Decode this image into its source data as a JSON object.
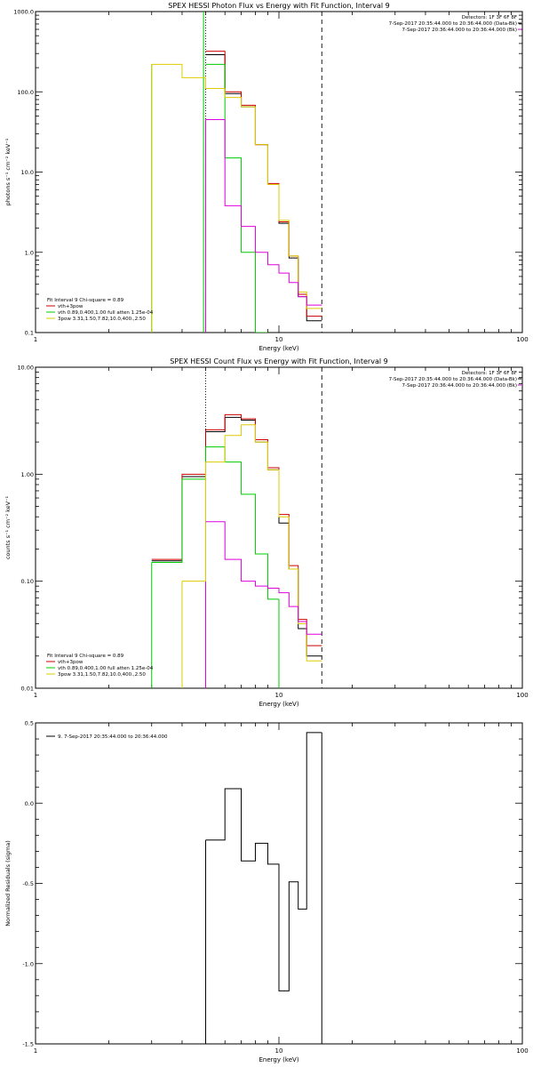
{
  "page": {
    "background": "#ffffff"
  },
  "colors": {
    "black": "#000000",
    "red": "#cc0000",
    "green": "#00cc00",
    "yellow": "#ddcc00",
    "magenta": "#dd00dd"
  },
  "chart_data": [
    {
      "type": "line",
      "title": "SPEX HESSI Photon Flux vs Energy with Fit Function, Interval 9",
      "xlabel": "Energy (keV)",
      "ylabel": "photons s⁻¹ cm⁻² keV⁻¹",
      "xscale": "log",
      "yscale": "log",
      "xlim": [
        1,
        100
      ],
      "ylim": [
        0.1,
        1000
      ],
      "xticks": [
        {
          "v": 1,
          "label": "1"
        },
        {
          "v": 10,
          "label": "10"
        },
        {
          "v": 100,
          "label": "100"
        }
      ],
      "yticks": [
        {
          "v": 0.1,
          "label": "0.1"
        },
        {
          "v": 1,
          "label": "1.0"
        },
        {
          "v": 10,
          "label": "10.0"
        },
        {
          "v": 100,
          "label": "100.0"
        },
        {
          "v": 1000,
          "label": "1000.0"
        }
      ],
      "info_lines": [
        "Detectors: 1F 3F 6F 8F",
        "7-Sep-2017 20:35:44.000 to 20:36:44.000 (Data-Bk)",
        "7-Sep-2017 20:36:44.000 to 20:36:44.000 (Bk)"
      ],
      "legend": [
        "Fit Interval 9   Chi-square = 0.89",
        "vth+3pow",
        "vth 0.89,0.400,1.00  full atten 1.25e-04",
        "3pow 3.31,1.50,7.82,10.0,400.,2.50"
      ],
      "bin_edges": [
        3.0,
        4.0,
        5.0,
        6.0,
        7.0,
        8.0,
        9.0,
        10.0,
        11.0,
        12.0,
        13.0,
        15.0
      ],
      "vlines": [
        {
          "x": 5.0,
          "style": "dotted",
          "color": "#000000"
        },
        {
          "x": 15.0,
          "style": "dashed",
          "color": "#000000"
        }
      ],
      "series": [
        {
          "name": "Data-Bk",
          "color": "#000000",
          "values": [
            null,
            null,
            290,
            95,
            65,
            22,
            7,
            2.3,
            0.85,
            0.28,
            0.14
          ]
        },
        {
          "name": "vth+3pow",
          "color": "#cc0000",
          "values": [
            null,
            null,
            320,
            100,
            68,
            22,
            7.2,
            2.4,
            0.9,
            0.3,
            0.16
          ]
        },
        {
          "name": "vth 0.89,0.400,1.00  full atten 1.25e-04",
          "color": "#00cc00",
          "values": [
            null,
            null,
            220,
            15,
            1.0,
            0.1,
            null,
            null,
            null,
            null,
            null
          ]
        },
        {
          "name": "3pow 3.31,1.50,7.82,10.0,400.,2.50",
          "color": "#ddcc00",
          "values": [
            220,
            150,
            110,
            85,
            65,
            22,
            7,
            2.5,
            0.9,
            0.32,
            0.2
          ]
        },
        {
          "name": "Bk",
          "color": "#dd00dd",
          "values": [
            null,
            null,
            45,
            3.8,
            2.1,
            1.0,
            0.7,
            0.55,
            0.42,
            0.28,
            0.22
          ]
        }
      ],
      "vertical_segments": [
        {
          "x": 3.0,
          "from": 0.1,
          "to": 220,
          "color": "#00cc00"
        },
        {
          "x": 3.0,
          "from": 0.1,
          "to": 220,
          "color": "#ddcc00"
        },
        {
          "x": 4.9,
          "from": 0.1,
          "to": 1000,
          "color": "#00cc00"
        },
        {
          "x": 5.0,
          "from": 0.1,
          "to": 45,
          "color": "#dd00dd"
        }
      ]
    },
    {
      "type": "line",
      "title": "SPEX HESSI Count Flux vs Energy with Fit Function, Interval 9",
      "xlabel": "Energy (keV)",
      "ylabel": "counts s⁻¹ cm⁻² keV⁻¹",
      "xscale": "log",
      "yscale": "log",
      "xlim": [
        1,
        100
      ],
      "ylim": [
        0.01,
        10
      ],
      "xticks": [
        {
          "v": 1,
          "label": "1"
        },
        {
          "v": 10,
          "label": "10"
        },
        {
          "v": 100,
          "label": "100"
        }
      ],
      "yticks": [
        {
          "v": 0.01,
          "label": "0.01"
        },
        {
          "v": 0.1,
          "label": "0.10"
        },
        {
          "v": 1,
          "label": "1.00"
        },
        {
          "v": 10,
          "label": "10.00"
        }
      ],
      "info_lines": [
        "Detectors: 1F 3F 6F 8F",
        "7-Sep-2017 20:35:44.000 to 20:36:44.000 (Data-Bk)",
        "7-Sep-2017 20:36:44.000 to 20:36:44.000 (Bk)"
      ],
      "legend": [
        "Fit Interval 9   Chi-square = 0.89",
        "vth+3pow",
        "vth 0.89,0.400,1.00  full atten 1.25e-04",
        "3pow 3.31,1.50,7.82,10.0,400.,2.50"
      ],
      "bin_edges": [
        3.0,
        4.0,
        5.0,
        6.0,
        7.0,
        8.0,
        9.0,
        10.0,
        11.0,
        12.0,
        13.0,
        15.0
      ],
      "vlines": [
        {
          "x": 5.0,
          "style": "dotted",
          "color": "#000000"
        },
        {
          "x": 15.0,
          "style": "dashed",
          "color": "#000000"
        }
      ],
      "series": [
        {
          "name": "Data-Bk",
          "color": "#000000",
          "values": [
            0.155,
            0.95,
            2.5,
            3.4,
            3.2,
            2.0,
            1.1,
            0.35,
            0.13,
            0.036,
            0.02
          ]
        },
        {
          "name": "vth+3pow",
          "color": "#cc0000",
          "values": [
            0.16,
            1.0,
            2.6,
            3.6,
            3.3,
            2.1,
            1.15,
            0.42,
            0.14,
            0.044,
            0.025
          ]
        },
        {
          "name": "vth 0.89,0.400,1.00  full atten 1.25e-04",
          "color": "#00cc00",
          "values": [
            0.15,
            0.9,
            1.8,
            1.3,
            0.65,
            0.18,
            0.068,
            null,
            null,
            null,
            null
          ]
        },
        {
          "name": "3pow 3.31,1.50,7.82,10.0,400.,2.50",
          "color": "#ddcc00",
          "values": [
            null,
            0.1,
            1.3,
            2.3,
            2.9,
            2.0,
            1.1,
            0.4,
            0.13,
            0.04,
            0.018
          ]
        },
        {
          "name": "Bk",
          "color": "#dd00dd",
          "values": [
            null,
            null,
            0.36,
            0.16,
            0.1,
            0.09,
            0.086,
            0.078,
            0.058,
            0.042,
            0.032
          ]
        }
      ],
      "vertical_segments": [
        {
          "x": 3.0,
          "from": 0.01,
          "to": 0.15,
          "color": "#00cc00"
        },
        {
          "x": 4.0,
          "from": 0.01,
          "to": 0.1,
          "color": "#ddcc00"
        },
        {
          "x": 5.0,
          "from": 0.01,
          "to": 0.36,
          "color": "#dd00dd"
        },
        {
          "x": 10.0,
          "from": 0.01,
          "to": 0.068,
          "color": "#00cc00"
        }
      ]
    },
    {
      "type": "line",
      "title": "",
      "xlabel": "Energy (keV)",
      "ylabel": "Normalized Residuals (sigma)",
      "xscale": "log",
      "yscale": "linear",
      "xlim": [
        1,
        100
      ],
      "ylim": [
        -1.5,
        0.5
      ],
      "xticks": [
        {
          "v": 1,
          "label": "1"
        },
        {
          "v": 10,
          "label": "10"
        },
        {
          "v": 100,
          "label": "100"
        }
      ],
      "yticks": [
        {
          "v": -1.5,
          "label": "-1.5"
        },
        {
          "v": -1.0,
          "label": "-1.0"
        },
        {
          "v": -0.5,
          "label": "-0.5"
        },
        {
          "v": 0.0,
          "label": "0.0"
        },
        {
          "v": 0.5,
          "label": "0.5"
        }
      ],
      "info_lines": [],
      "legend": [
        "9.  7-Sep-2017 20:35:44.000 to 20:36:44.000"
      ],
      "bin_edges": [
        5.0,
        6.0,
        7.0,
        8.0,
        9.0,
        10.0,
        11.0,
        12.0,
        13.0,
        15.0
      ],
      "vlines": [],
      "series": [
        {
          "name": "9.  7-Sep-2017 20:35:44.000 to 20:36:44.000",
          "color": "#000000",
          "values": [
            -0.23,
            0.09,
            -0.36,
            -0.25,
            -0.38,
            -1.17,
            -0.49,
            -0.66,
            0.44
          ]
        }
      ],
      "vertical_segments": [
        {
          "x": 5.0,
          "from": -1.5,
          "to": -0.23,
          "color": "#000000"
        },
        {
          "x": 15.0,
          "from": -1.5,
          "to": 0.44,
          "color": "#000000"
        }
      ]
    }
  ]
}
